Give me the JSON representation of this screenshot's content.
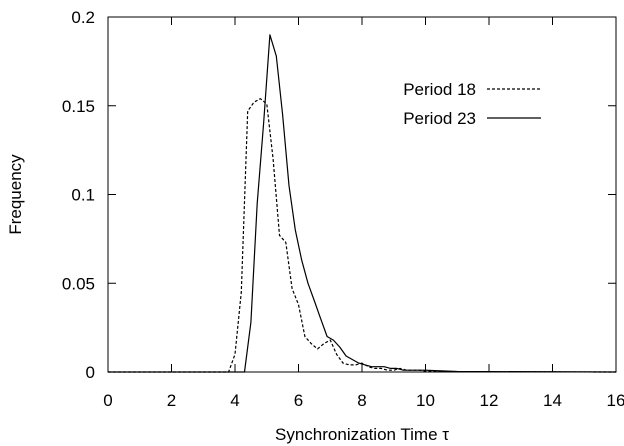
{
  "chart_data": {
    "type": "line",
    "xlabel": "Synchronization Time τ",
    "ylabel": "Frequency",
    "xlim": [
      0,
      16
    ],
    "ylim": [
      0,
      0.2
    ],
    "x_ticks": [
      "0",
      "2",
      "4",
      "6",
      "8",
      "10",
      "12",
      "14",
      "16"
    ],
    "y_ticks": [
      "0",
      "0.05",
      "0.1",
      "0.15",
      "0.2"
    ],
    "grid": false,
    "legend_position": "top-right",
    "zero_line": "dotted",
    "series": [
      {
        "name": "Period 18",
        "style": "dashed",
        "color": "#000000",
        "x": [
          0,
          3.8,
          4.0,
          4.2,
          4.4,
          4.6,
          4.8,
          5.0,
          5.2,
          5.4,
          5.6,
          5.8,
          6.0,
          6.2,
          6.4,
          6.6,
          6.8,
          7.0,
          7.2,
          7.4,
          7.6,
          7.8,
          8.0,
          8.2,
          8.4,
          8.6,
          8.8,
          9.0,
          9.2,
          9.4,
          9.6,
          9.8,
          10.0,
          10.5,
          11.0,
          12.0,
          16.0
        ],
        "y": [
          0,
          0,
          0.01,
          0.045,
          0.147,
          0.152,
          0.154,
          0.151,
          0.12,
          0.077,
          0.073,
          0.047,
          0.038,
          0.02,
          0.016,
          0.013,
          0.016,
          0.018,
          0.01,
          0.005,
          0.004,
          0.004,
          0.005,
          0.003,
          0.002,
          0.002,
          0.001,
          0.001,
          0.002,
          0.001,
          0.001,
          0.001,
          0.0005,
          0.0003,
          0.0002,
          0.0001,
          0
        ]
      },
      {
        "name": "Period 23",
        "style": "solid",
        "color": "#000000",
        "x": [
          0,
          4.3,
          4.5,
          4.7,
          4.9,
          5.1,
          5.3,
          5.5,
          5.7,
          5.9,
          6.1,
          6.3,
          6.5,
          6.7,
          6.9,
          7.1,
          7.3,
          7.5,
          7.7,
          7.9,
          8.1,
          8.3,
          8.5,
          8.7,
          8.9,
          9.1,
          9.3,
          9.5,
          9.8,
          10.0,
          10.5,
          11.0,
          12.0,
          16.0
        ],
        "y": [
          0,
          0,
          0.028,
          0.095,
          0.14,
          0.19,
          0.178,
          0.145,
          0.105,
          0.08,
          0.063,
          0.05,
          0.04,
          0.03,
          0.02,
          0.018,
          0.014,
          0.009,
          0.007,
          0.005,
          0.004,
          0.003,
          0.003,
          0.003,
          0.002,
          0.002,
          0.001,
          0.001,
          0.001,
          0.001,
          0.0006,
          0.0003,
          0.0002,
          0
        ]
      }
    ]
  }
}
